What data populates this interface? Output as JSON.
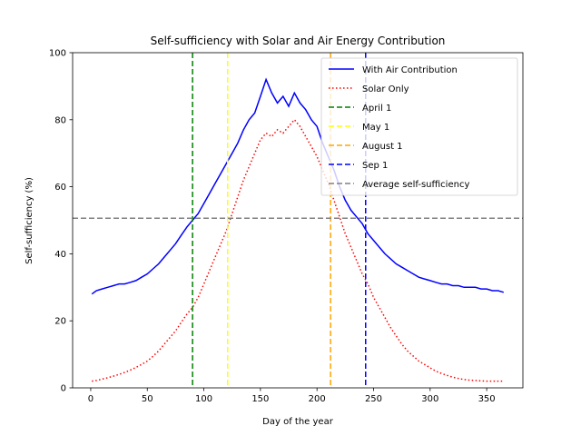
{
  "chart_data": {
    "type": "line",
    "title": "Self-sufficiency with Solar and Air Energy Contribution",
    "xlabel": "Day of the year",
    "ylabel": "Self-sufficiency (%)",
    "xlim": [
      -16,
      382
    ],
    "ylim": [
      0,
      100
    ],
    "xticks": [
      0,
      50,
      100,
      150,
      200,
      250,
      300,
      350
    ],
    "yticks": [
      0,
      20,
      40,
      60,
      80,
      100
    ],
    "grid": false,
    "legend_position": "upper right",
    "series": [
      {
        "name": "With Air Contribution",
        "color": "#0000ff",
        "style": "solid",
        "x": [
          1,
          5,
          10,
          15,
          20,
          25,
          30,
          35,
          40,
          45,
          50,
          55,
          60,
          65,
          70,
          75,
          80,
          85,
          90,
          95,
          100,
          105,
          110,
          115,
          120,
          125,
          130,
          135,
          140,
          145,
          150,
          155,
          160,
          165,
          170,
          175,
          180,
          185,
          190,
          195,
          200,
          205,
          210,
          215,
          220,
          225,
          230,
          235,
          240,
          245,
          250,
          255,
          260,
          265,
          270,
          275,
          280,
          285,
          290,
          295,
          300,
          305,
          310,
          315,
          320,
          325,
          330,
          335,
          340,
          345,
          350,
          355,
          360,
          365
        ],
        "y": [
          28,
          29,
          29.5,
          30,
          30.5,
          31,
          31,
          31.5,
          32,
          33,
          34,
          35.5,
          37,
          39,
          41,
          43,
          45.5,
          48,
          50,
          52,
          55,
          58,
          61,
          64,
          67,
          70,
          73,
          77,
          80,
          82,
          87,
          92,
          88,
          85,
          87,
          84,
          88,
          85,
          83,
          80,
          78,
          73,
          69,
          65,
          60,
          56,
          53,
          51,
          49,
          46,
          44,
          42,
          40,
          38.5,
          37,
          36,
          35,
          34,
          33,
          32.5,
          32,
          31.5,
          31,
          31,
          30.5,
          30.5,
          30,
          30,
          30,
          29.5,
          29.5,
          29,
          29,
          28.5
        ]
      },
      {
        "name": "Solar Only",
        "color": "#ff0000",
        "style": "dotted",
        "x": [
          1,
          5,
          10,
          15,
          20,
          25,
          30,
          35,
          40,
          45,
          50,
          55,
          60,
          65,
          70,
          75,
          80,
          85,
          90,
          95,
          100,
          105,
          110,
          115,
          120,
          125,
          130,
          135,
          140,
          145,
          150,
          155,
          160,
          165,
          170,
          175,
          180,
          185,
          190,
          195,
          200,
          205,
          210,
          215,
          220,
          225,
          230,
          235,
          240,
          245,
          250,
          255,
          260,
          265,
          270,
          275,
          280,
          285,
          290,
          295,
          300,
          305,
          310,
          315,
          320,
          325,
          330,
          335,
          340,
          345,
          350,
          355,
          360,
          365
        ],
        "y": [
          2,
          2.2,
          2.6,
          3,
          3.5,
          4,
          4.6,
          5.3,
          6.1,
          7,
          8,
          9.4,
          11,
          13,
          15,
          17,
          19.5,
          22,
          24,
          27,
          31,
          35,
          39,
          43,
          47,
          52,
          57,
          62,
          66,
          70,
          74,
          76,
          75,
          77,
          76,
          78,
          80,
          78,
          75,
          72,
          69,
          65,
          61,
          56,
          51,
          46,
          42,
          38,
          34,
          31,
          27,
          24,
          21,
          18,
          15.5,
          13,
          11,
          9.5,
          8,
          7,
          6,
          5,
          4.3,
          3.7,
          3.2,
          2.8,
          2.5,
          2.3,
          2.2,
          2.1,
          2,
          2,
          2,
          2
        ]
      }
    ],
    "vertical_lines": [
      {
        "name": "April 1",
        "x": 90,
        "color": "#008000"
      },
      {
        "name": "May 1",
        "x": 121,
        "color": "#ffff00"
      },
      {
        "name": "August 1",
        "x": 212,
        "color": "#ffa500"
      },
      {
        "name": "Sep 1",
        "x": 243,
        "color": "#0000ff"
      }
    ],
    "horizontal_lines": [
      {
        "name": "Average self-sufficiency",
        "y": 50.6,
        "color": "#808080"
      }
    ]
  }
}
